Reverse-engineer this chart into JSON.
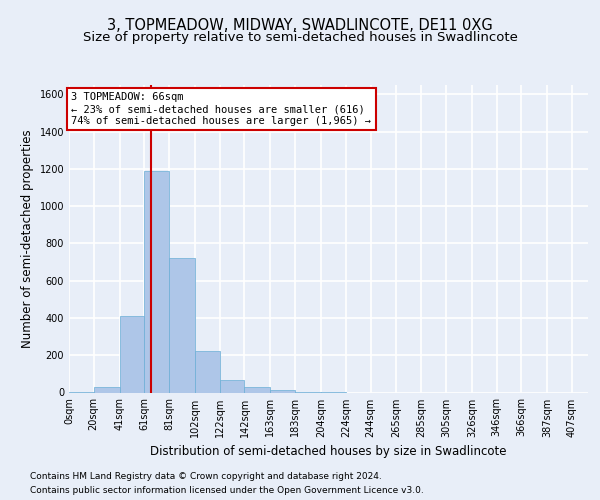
{
  "title": "3, TOPMEADOW, MIDWAY, SWADLINCOTE, DE11 0XG",
  "subtitle": "Size of property relative to semi-detached houses in Swadlincote",
  "xlabel": "Distribution of semi-detached houses by size in Swadlincote",
  "ylabel": "Number of semi-detached properties",
  "footnote1": "Contains HM Land Registry data © Crown copyright and database right 2024.",
  "footnote2": "Contains public sector information licensed under the Open Government Licence v3.0.",
  "bar_left_edges": [
    0,
    20,
    41,
    61,
    81,
    102,
    122,
    142,
    163,
    183,
    204,
    224,
    244,
    265,
    285,
    305,
    326,
    346,
    366,
    387
  ],
  "bar_heights": [
    5,
    30,
    410,
    1190,
    720,
    225,
    65,
    30,
    15,
    3,
    1,
    0,
    0,
    0,
    0,
    0,
    0,
    0,
    0,
    0
  ],
  "bar_widths": [
    20,
    21,
    20,
    20,
    21,
    20,
    20,
    21,
    20,
    21,
    20,
    20,
    21,
    20,
    20,
    21,
    20,
    20,
    21,
    20
  ],
  "bar_color": "#aec6e8",
  "bar_edge_color": "#6aaed6",
  "property_line_x": 66,
  "property_line_color": "#cc0000",
  "annotation_line1": "3 TOPMEADOW: 66sqm",
  "annotation_line2": "← 23% of semi-detached houses are smaller (616)",
  "annotation_line3": "74% of semi-detached houses are larger (1,965) →",
  "annotation_box_color": "#ffffff",
  "annotation_box_edge": "#cc0000",
  "tick_labels": [
    "0sqm",
    "20sqm",
    "41sqm",
    "61sqm",
    "81sqm",
    "102sqm",
    "122sqm",
    "142sqm",
    "163sqm",
    "183sqm",
    "204sqm",
    "224sqm",
    "244sqm",
    "265sqm",
    "285sqm",
    "305sqm",
    "326sqm",
    "346sqm",
    "366sqm",
    "387sqm",
    "407sqm"
  ],
  "tick_positions": [
    0,
    20,
    41,
    61,
    81,
    102,
    122,
    142,
    163,
    183,
    204,
    224,
    244,
    265,
    285,
    305,
    326,
    346,
    366,
    387,
    407
  ],
  "ylim": [
    0,
    1650
  ],
  "xlim": [
    0,
    420
  ],
  "yticks": [
    0,
    200,
    400,
    600,
    800,
    1000,
    1200,
    1400,
    1600
  ],
  "background_color": "#e8eef8",
  "plot_bg_color": "#e8eef8",
  "grid_color": "#ffffff",
  "title_fontsize": 10.5,
  "subtitle_fontsize": 9.5,
  "axis_label_fontsize": 8.5,
  "tick_fontsize": 7,
  "annotation_fontsize": 7.5,
  "footnote_fontsize": 6.5
}
